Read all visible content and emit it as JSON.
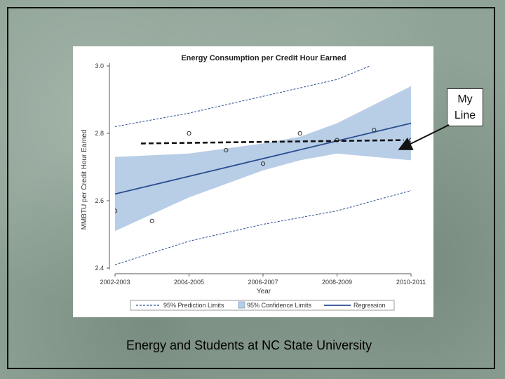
{
  "callout": {
    "line1": "My",
    "line2": "Line"
  },
  "caption": "Energy and Students at NC State University",
  "colors": {
    "confidence_fill": "#b8cde6",
    "regression": "#2a4d8f",
    "prediction": "#2a4d8f",
    "my_line": "#111111",
    "marker": "#333333"
  },
  "chart_data": {
    "type": "scatter",
    "title": "Energy Consumption per Credit Hour Earned",
    "xlabel": "Year",
    "ylabel": "MMBTU per Credit Hour Earned",
    "ylim": [
      2.4,
      3.0
    ],
    "yticks": [
      "2.4",
      "2.6",
      "2.8",
      "3.0"
    ],
    "yticks_values": [
      2.4,
      2.6,
      2.8,
      3.0
    ],
    "xticks": [
      "2002-2003",
      "2004-2005",
      "2006-2007",
      "2008-2009",
      "2010-2011"
    ],
    "xticks_values": [
      2002,
      2004,
      2006,
      2008,
      2010
    ],
    "xlim": [
      2002,
      2010
    ],
    "points": [
      {
        "x": 2002,
        "y": 2.57
      },
      {
        "x": 2003,
        "y": 2.54
      },
      {
        "x": 2004,
        "y": 2.8
      },
      {
        "x": 2005,
        "y": 2.75
      },
      {
        "x": 2006,
        "y": 2.71
      },
      {
        "x": 2007,
        "y": 2.8
      },
      {
        "x": 2008,
        "y": 2.78
      },
      {
        "x": 2009,
        "y": 2.81
      },
      {
        "x": 2010,
        "y": 2.78
      },
      {
        "x": 2010,
        "y": 2.77
      }
    ],
    "regression": {
      "x": [
        2002,
        2010
      ],
      "y": [
        2.62,
        2.83
      ]
    },
    "confidence": {
      "x": [
        2002,
        2004,
        2006,
        2007,
        2008,
        2010
      ],
      "lower": [
        2.51,
        2.61,
        2.69,
        2.72,
        2.74,
        2.72
      ],
      "upper": [
        2.73,
        2.74,
        2.77,
        2.79,
        2.83,
        2.94
      ]
    },
    "prediction": {
      "x": [
        2002,
        2004,
        2006,
        2008,
        2010
      ],
      "lower": [
        2.41,
        2.48,
        2.53,
        2.57,
        2.63
      ],
      "upper": [
        2.82,
        2.86,
        2.91,
        2.96,
        3.05
      ]
    },
    "my_line": {
      "x": [
        2002.7,
        2009.8
      ],
      "y": [
        2.77,
        2.78
      ]
    },
    "legend": {
      "position": "bottom",
      "entries": [
        "95% Prediction Limits",
        "95% Confidence Limits",
        "Regression"
      ]
    }
  }
}
